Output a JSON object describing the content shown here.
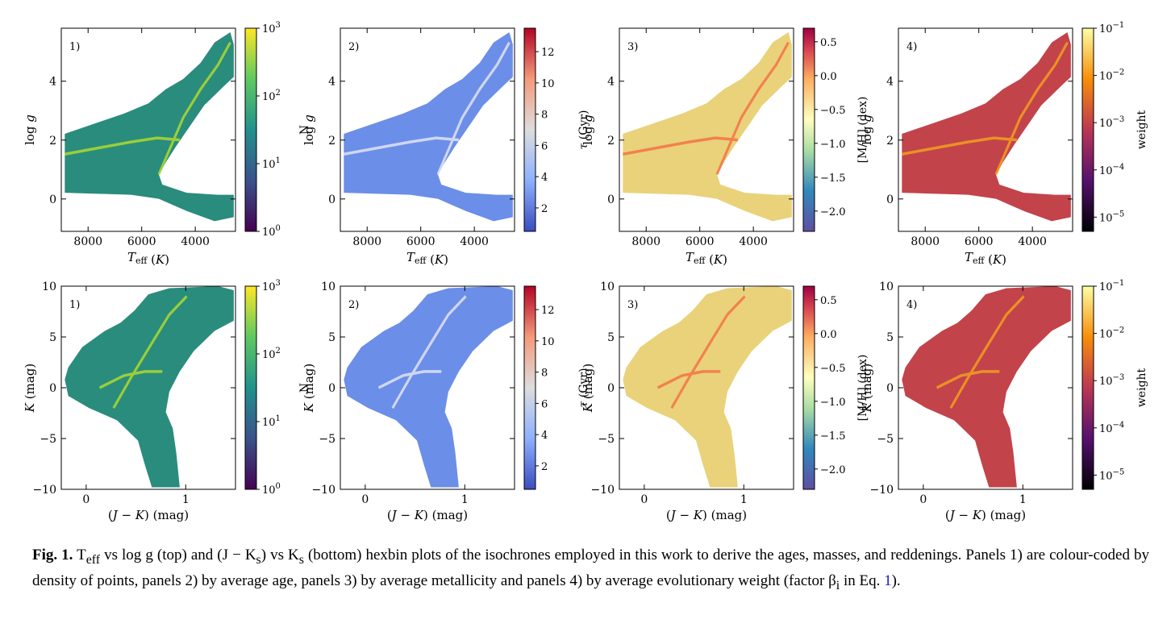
{
  "chart_data": [
    {
      "type": "heatmap",
      "panel": "1)",
      "row": "top",
      "xlabel": "T_eff (K)",
      "ylabel": "log g",
      "xlim": [
        9000,
        2500
      ],
      "ylim": [
        5.8,
        -1.1
      ],
      "xticks": [
        8000,
        6000,
        4000
      ],
      "yticks": [
        0,
        2,
        4
      ],
      "colorbar": {
        "label": "N",
        "scale": "log",
        "ticks": [
          "10^0",
          "10^1",
          "10^2",
          "10^3"
        ],
        "range": [
          1,
          1000
        ],
        "cmap": "viridis"
      }
    },
    {
      "type": "heatmap",
      "panel": "2)",
      "row": "top",
      "xlabel": "T_eff (K)",
      "ylabel": "log g",
      "xlim": [
        9000,
        2500
      ],
      "ylim": [
        5.8,
        -1.1
      ],
      "xticks": [
        8000,
        6000,
        4000
      ],
      "yticks": [
        0,
        2,
        4
      ],
      "colorbar": {
        "label": "τ (Gyr)",
        "scale": "linear",
        "ticks": [
          "2",
          "4",
          "6",
          "8",
          "10",
          "12"
        ],
        "range": [
          0.5,
          13.5
        ],
        "cmap": "coolwarm"
      }
    },
    {
      "type": "heatmap",
      "panel": "3)",
      "row": "top",
      "xlabel": "T_eff (K)",
      "ylabel": "log g",
      "xlim": [
        9000,
        2500
      ],
      "ylim": [
        5.8,
        -1.1
      ],
      "xticks": [
        8000,
        6000,
        4000
      ],
      "yticks": [
        0,
        2,
        4
      ],
      "colorbar": {
        "label": "[M/H] (dex)",
        "scale": "linear",
        "ticks": [
          "0.5",
          "0.0",
          "−0.5",
          "−1.0",
          "−1.5",
          "−2.0"
        ],
        "range": [
          -2.3,
          0.7
        ],
        "cmap": "spectral"
      }
    },
    {
      "type": "heatmap",
      "panel": "4)",
      "row": "top",
      "xlabel": "T_eff (K)",
      "ylabel": "log g",
      "xlim": [
        9000,
        2500
      ],
      "ylim": [
        5.8,
        -1.1
      ],
      "xticks": [
        8000,
        6000,
        4000
      ],
      "yticks": [
        0,
        2,
        4
      ],
      "colorbar": {
        "label": "weight",
        "scale": "log",
        "ticks": [
          "10^-5",
          "10^-4",
          "10^-3",
          "10^-2",
          "10^-1"
        ],
        "range": [
          5e-06,
          0.1
        ],
        "cmap": "inferno"
      }
    },
    {
      "type": "heatmap",
      "panel": "1)",
      "row": "bottom",
      "xlabel": "(J − K) (mag)",
      "ylabel": "K (mag)",
      "xlim": [
        -0.25,
        1.5
      ],
      "ylim": [
        10,
        -10
      ],
      "xticks": [
        0,
        1
      ],
      "yticks": [
        -10,
        -5,
        0,
        5,
        10
      ],
      "colorbar": {
        "label": "N",
        "scale": "log",
        "ticks": [
          "10^0",
          "10^1",
          "10^2",
          "10^3"
        ],
        "range": [
          1,
          1000
        ],
        "cmap": "viridis"
      }
    },
    {
      "type": "heatmap",
      "panel": "2)",
      "row": "bottom",
      "xlabel": "(J − K) (mag)",
      "ylabel": "K (mag)",
      "xlim": [
        -0.25,
        1.5
      ],
      "ylim": [
        10,
        -10
      ],
      "xticks": [
        0,
        1
      ],
      "yticks": [
        -10,
        -5,
        0,
        5,
        10
      ],
      "colorbar": {
        "label": "τ (Gyr)",
        "scale": "linear",
        "ticks": [
          "2",
          "4",
          "6",
          "8",
          "10",
          "12"
        ],
        "range": [
          0.5,
          13.5
        ],
        "cmap": "coolwarm"
      }
    },
    {
      "type": "heatmap",
      "panel": "3)",
      "row": "bottom",
      "xlabel": "(J − K) (mag)",
      "ylabel": "K (mag)",
      "xlim": [
        -0.25,
        1.5
      ],
      "ylim": [
        10,
        -10
      ],
      "xticks": [
        0,
        1
      ],
      "yticks": [
        -10,
        -5,
        0,
        5,
        10
      ],
      "colorbar": {
        "label": "[M/H] (dex)",
        "scale": "linear",
        "ticks": [
          "0.5",
          "0.0",
          "−0.5",
          "−1.0",
          "−1.5",
          "−2.0"
        ],
        "range": [
          -2.3,
          0.7
        ],
        "cmap": "spectral"
      }
    },
    {
      "type": "heatmap",
      "panel": "4)",
      "row": "bottom",
      "xlabel": "(J − K) (mag)",
      "ylabel": "K (mag)",
      "xlim": [
        -0.25,
        1.5
      ],
      "ylim": [
        10,
        -10
      ],
      "xticks": [
        0,
        1
      ],
      "yticks": [
        -10,
        -5,
        0,
        5,
        10
      ],
      "colorbar": {
        "label": "weight",
        "scale": "log",
        "ticks": [
          "10^-5",
          "10^-4",
          "10^-3",
          "10^-2",
          "10^-1"
        ],
        "range": [
          5e-06,
          0.1
        ],
        "cmap": "inferno"
      }
    }
  ],
  "caption": {
    "label": "Fig. 1.",
    "part1": " T",
    "sub_eff": "eff",
    "part2": " vs log g  (top) and (J − K",
    "sub_s1": "s",
    "part3": ") vs K",
    "sub_s2": "s",
    "part4": " (bottom) hexbin plots of the isochrones employed in this work to derive the ages, masses, and reddenings. Panels 1) are colour-coded by density of points, panels 2) by average age, panels 3) by average metallicity and panels 4) by average evolutionary weight (factor β",
    "sub_i": "i",
    "part5": " in Eq. ",
    "eq_ref": "1",
    "part6": ")."
  }
}
